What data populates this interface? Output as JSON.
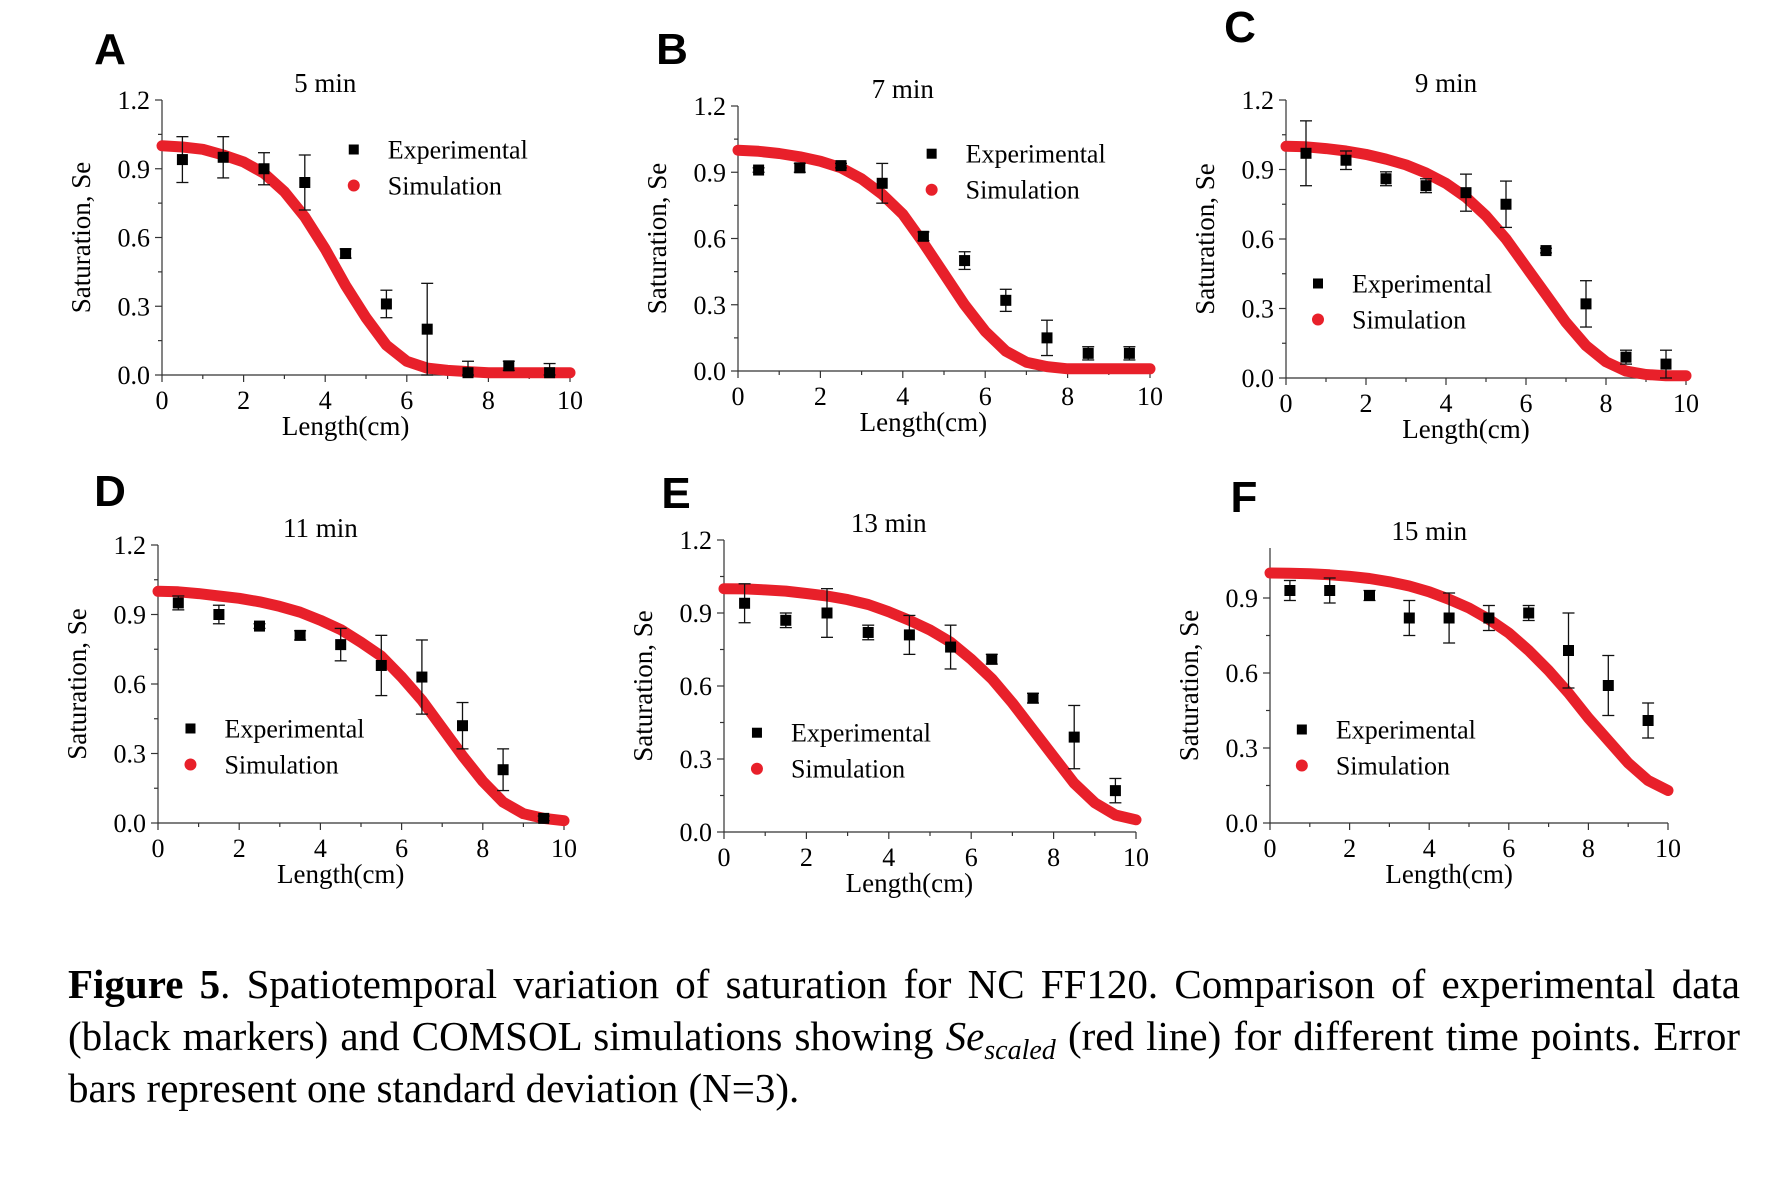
{
  "chart_data": [
    {
      "type": "scatter",
      "panel": "A",
      "title": "5 min",
      "xlabel": "Length(cm)",
      "ylabel": "Saturation, Se",
      "xlim": [
        0,
        10
      ],
      "ylim": [
        0,
        1.2
      ],
      "xticks": [
        0,
        2,
        4,
        6,
        8,
        10
      ],
      "yticks": [
        0.0,
        0.3,
        0.6,
        0.9,
        1.2
      ],
      "xtick_labels": [
        "0",
        "2",
        "4",
        "6",
        "8",
        "10"
      ],
      "ytick_labels": [
        "0.0",
        "0.3",
        "0.6",
        "0.9",
        "1.2"
      ],
      "legend_position": "upper-right",
      "series": [
        {
          "name": "Experimental",
          "color": "#000000",
          "x": [
            0.5,
            1.5,
            2.5,
            3.5,
            4.5,
            5.5,
            6.5,
            7.5,
            8.5,
            9.5
          ],
          "y": [
            0.94,
            0.95,
            0.9,
            0.84,
            0.53,
            0.31,
            0.2,
            0.01,
            0.04,
            0.01
          ],
          "yerr": [
            0.1,
            0.09,
            0.07,
            0.12,
            0.02,
            0.06,
            0.2,
            0.05,
            0.02,
            0.04
          ]
        },
        {
          "name": "Simulation",
          "color": "#e8202a",
          "x": [
            0,
            0.5,
            1,
            1.5,
            2,
            2.5,
            3,
            3.5,
            4,
            4.5,
            5,
            5.5,
            6,
            6.5,
            7,
            7.5,
            8,
            8.5,
            9,
            9.5,
            10
          ],
          "y": [
            1.0,
            0.995,
            0.985,
            0.96,
            0.93,
            0.88,
            0.8,
            0.69,
            0.55,
            0.39,
            0.25,
            0.13,
            0.06,
            0.03,
            0.02,
            0.015,
            0.01,
            0.01,
            0.01,
            0.01,
            0.01
          ]
        }
      ]
    },
    {
      "type": "scatter",
      "panel": "B",
      "title": "7 min",
      "xlabel": "Length(cm)",
      "ylabel": "Saturation, Se",
      "xlim": [
        0,
        10
      ],
      "ylim": [
        0,
        1.2
      ],
      "xticks": [
        0,
        2,
        4,
        6,
        8,
        10
      ],
      "yticks": [
        0.0,
        0.3,
        0.6,
        0.9,
        1.2
      ],
      "xtick_labels": [
        "0",
        "2",
        "4",
        "6",
        "8",
        "10"
      ],
      "ytick_labels": [
        "0.0",
        "0.3",
        "0.6",
        "0.9",
        "1.2"
      ],
      "legend_position": "upper-right",
      "series": [
        {
          "name": "Experimental",
          "color": "#000000",
          "x": [
            0.5,
            1.5,
            2.5,
            3.5,
            4.5,
            5.5,
            6.5,
            7.5,
            8.5,
            9.5
          ],
          "y": [
            0.91,
            0.92,
            0.93,
            0.85,
            0.61,
            0.5,
            0.32,
            0.15,
            0.08,
            0.08
          ],
          "yerr": [
            0.01,
            0.02,
            0.01,
            0.09,
            0.02,
            0.04,
            0.05,
            0.08,
            0.03,
            0.03
          ]
        },
        {
          "name": "Simulation",
          "color": "#e8202a",
          "x": [
            0,
            0.5,
            1,
            1.5,
            2,
            2.5,
            3,
            3.5,
            4,
            4.5,
            5,
            5.5,
            6,
            6.5,
            7,
            7.5,
            8,
            8.5,
            9,
            9.5,
            10
          ],
          "y": [
            1.0,
            0.995,
            0.985,
            0.97,
            0.95,
            0.92,
            0.87,
            0.8,
            0.71,
            0.58,
            0.44,
            0.3,
            0.18,
            0.09,
            0.04,
            0.02,
            0.01,
            0.01,
            0.01,
            0.01,
            0.01
          ]
        }
      ]
    },
    {
      "type": "scatter",
      "panel": "C",
      "title": "9 min",
      "xlabel": "Length(cm)",
      "ylabel": "Saturation, Se",
      "xlim": [
        0,
        10
      ],
      "ylim": [
        0,
        1.2
      ],
      "xticks": [
        0,
        2,
        4,
        6,
        8,
        10
      ],
      "yticks": [
        0.0,
        0.3,
        0.6,
        0.9,
        1.2
      ],
      "xtick_labels": [
        "0",
        "2",
        "4",
        "6",
        "8",
        "10"
      ],
      "ytick_labels": [
        "0.0",
        "0.3",
        "0.6",
        "0.9",
        "1.2"
      ],
      "legend_position": "lower-left",
      "series": [
        {
          "name": "Experimental",
          "color": "#000000",
          "x": [
            0.5,
            1.5,
            2.5,
            3.5,
            4.5,
            5.5,
            6.5,
            7.5,
            8.5,
            9.5
          ],
          "y": [
            0.97,
            0.94,
            0.86,
            0.83,
            0.8,
            0.75,
            0.55,
            0.32,
            0.09,
            0.06
          ],
          "yerr": [
            0.14,
            0.04,
            0.03,
            0.03,
            0.08,
            0.1,
            0.01,
            0.1,
            0.03,
            0.06
          ]
        },
        {
          "name": "Simulation",
          "color": "#e8202a",
          "x": [
            0,
            0.5,
            1,
            1.5,
            2,
            2.5,
            3,
            3.5,
            4,
            4.5,
            5,
            5.5,
            6,
            6.5,
            7,
            7.5,
            8,
            8.5,
            9,
            9.5,
            10
          ],
          "y": [
            1.0,
            0.998,
            0.99,
            0.98,
            0.965,
            0.945,
            0.92,
            0.885,
            0.84,
            0.78,
            0.7,
            0.6,
            0.48,
            0.36,
            0.24,
            0.14,
            0.07,
            0.03,
            0.015,
            0.01,
            0.01
          ]
        }
      ]
    },
    {
      "type": "scatter",
      "panel": "D",
      "title": "11 min",
      "xlabel": "Length(cm)",
      "ylabel": "Saturation, Se",
      "xlim": [
        0,
        10
      ],
      "ylim": [
        0,
        1.2
      ],
      "xticks": [
        0,
        2,
        4,
        6,
        8,
        10
      ],
      "yticks": [
        0.0,
        0.3,
        0.6,
        0.9,
        1.2
      ],
      "xtick_labels": [
        "0",
        "2",
        "4",
        "6",
        "8",
        "10"
      ],
      "ytick_labels": [
        "0.0",
        "0.3",
        "0.6",
        "0.9",
        "1.2"
      ],
      "legend_position": "lower-left",
      "series": [
        {
          "name": "Experimental",
          "color": "#000000",
          "x": [
            0.5,
            1.5,
            2.5,
            3.5,
            4.5,
            5.5,
            6.5,
            7.5,
            8.5,
            9.5
          ],
          "y": [
            0.95,
            0.9,
            0.85,
            0.81,
            0.77,
            0.68,
            0.63,
            0.42,
            0.23,
            0.02
          ],
          "yerr": [
            0.03,
            0.04,
            0.01,
            0.02,
            0.07,
            0.13,
            0.16,
            0.1,
            0.09,
            0.01
          ]
        },
        {
          "name": "Simulation",
          "color": "#e8202a",
          "x": [
            0,
            0.5,
            1,
            1.5,
            2,
            2.5,
            3,
            3.5,
            4,
            4.5,
            5,
            5.5,
            6,
            6.5,
            7,
            7.5,
            8,
            8.5,
            9,
            9.5,
            10
          ],
          "y": [
            1.0,
            0.998,
            0.99,
            0.98,
            0.97,
            0.955,
            0.935,
            0.91,
            0.875,
            0.835,
            0.78,
            0.72,
            0.63,
            0.53,
            0.41,
            0.29,
            0.18,
            0.09,
            0.04,
            0.02,
            0.01
          ]
        }
      ]
    },
    {
      "type": "scatter",
      "panel": "E",
      "title": "13 min",
      "xlabel": "Length(cm)",
      "ylabel": "Saturation, Se",
      "xlim": [
        0,
        10
      ],
      "ylim": [
        0,
        1.2
      ],
      "xticks": [
        0,
        2,
        4,
        6,
        8,
        10
      ],
      "yticks": [
        0.0,
        0.3,
        0.6,
        0.9,
        1.2
      ],
      "xtick_labels": [
        "0",
        "2",
        "4",
        "6",
        "8",
        "10"
      ],
      "ytick_labels": [
        "0.0",
        "0.3",
        "0.6",
        "0.9",
        "1.2"
      ],
      "legend_position": "lower-left",
      "series": [
        {
          "name": "Experimental",
          "color": "#000000",
          "x": [
            0.5,
            1.5,
            2.5,
            3.5,
            4.5,
            5.5,
            6.5,
            7.5,
            8.5,
            9.5
          ],
          "y": [
            0.94,
            0.87,
            0.9,
            0.82,
            0.81,
            0.76,
            0.71,
            0.55,
            0.39,
            0.17
          ],
          "yerr": [
            0.08,
            0.03,
            0.1,
            0.03,
            0.08,
            0.09,
            0.02,
            0.02,
            0.13,
            0.05
          ]
        },
        {
          "name": "Simulation",
          "color": "#e8202a",
          "x": [
            0,
            0.5,
            1,
            1.5,
            2,
            2.5,
            3,
            3.5,
            4,
            4.5,
            5,
            5.5,
            6,
            6.5,
            7,
            7.5,
            8,
            8.5,
            9,
            9.5,
            10
          ],
          "y": [
            1.0,
            0.999,
            0.995,
            0.99,
            0.98,
            0.97,
            0.955,
            0.935,
            0.905,
            0.87,
            0.83,
            0.78,
            0.71,
            0.63,
            0.53,
            0.42,
            0.31,
            0.2,
            0.12,
            0.07,
            0.05
          ]
        }
      ]
    },
    {
      "type": "scatter",
      "panel": "F",
      "title": "15 min",
      "xlabel": "Length(cm)",
      "ylabel": "Saturation, Se",
      "xlim": [
        0,
        10
      ],
      "ylim": [
        0,
        1.1
      ],
      "xticks": [
        0,
        2,
        4,
        6,
        8,
        10
      ],
      "yticks": [
        0.0,
        0.3,
        0.6,
        0.9
      ],
      "xtick_labels": [
        "0",
        "2",
        "4",
        "6",
        "8",
        "10"
      ],
      "ytick_labels": [
        "0.0",
        "0.3",
        "0.6",
        "0.9"
      ],
      "legend_position": "lower-left",
      "series": [
        {
          "name": "Experimental",
          "color": "#000000",
          "x": [
            0.5,
            1.5,
            2.5,
            3.5,
            4.5,
            5.5,
            6.5,
            7.5,
            8.5,
            9.5
          ],
          "y": [
            0.93,
            0.93,
            0.91,
            0.82,
            0.82,
            0.82,
            0.84,
            0.69,
            0.55,
            0.41
          ],
          "yerr": [
            0.04,
            0.05,
            0.02,
            0.07,
            0.1,
            0.05,
            0.03,
            0.15,
            0.12,
            0.07
          ]
        },
        {
          "name": "Simulation",
          "color": "#e8202a",
          "x": [
            0,
            0.5,
            1,
            1.5,
            2,
            2.5,
            3,
            3.5,
            4,
            4.5,
            5,
            5.5,
            6,
            6.5,
            7,
            7.5,
            8,
            8.5,
            9,
            9.5,
            10
          ],
          "y": [
            1.0,
            0.999,
            0.997,
            0.993,
            0.987,
            0.978,
            0.965,
            0.948,
            0.925,
            0.895,
            0.86,
            0.815,
            0.76,
            0.69,
            0.61,
            0.52,
            0.42,
            0.33,
            0.24,
            0.17,
            0.13
          ]
        }
      ]
    }
  ],
  "caption": {
    "label": "Figure 5",
    "text_1": ". Spatiotemporal variation of saturation for NC FF120. Comparison of experimental data (black markers) and COMSOL simulations showing ",
    "symbol": "Se",
    "symbol_sub": "scaled",
    "text_2": " (red line) for different time points. Error bars represent one standard deviation (N=3)."
  }
}
